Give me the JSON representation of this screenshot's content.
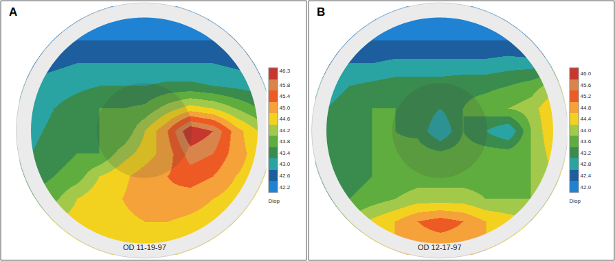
{
  "chart_data": [
    {
      "type": "heatmap",
      "title": "A",
      "subtitle": "OD 11-19-97",
      "tick_labels": false,
      "x": [
        -1,
        -0.8,
        -0.6,
        -0.4,
        -0.2,
        0,
        0.2,
        0.4,
        0.6,
        0.8,
        1
      ],
      "y": [
        1,
        0.8,
        0.6,
        0.4,
        0.2,
        0,
        -0.2,
        -0.4,
        -0.6,
        -0.8,
        -1
      ],
      "z": [
        [
          42.2,
          42.2,
          42.2,
          42.2,
          42.2,
          42.2,
          42.2,
          42.2,
          42.2,
          42.2,
          42.2
        ],
        [
          42.2,
          42.2,
          42.4,
          42.4,
          42.4,
          42.4,
          42.4,
          42.4,
          42.4,
          42.2,
          42.2
        ],
        [
          42.6,
          42.7,
          42.8,
          42.8,
          42.8,
          42.8,
          42.8,
          42.8,
          42.8,
          42.7,
          42.6
        ],
        [
          42.9,
          43.0,
          43.1,
          43.2,
          43.2,
          43.2,
          43.3,
          43.3,
          43.2,
          43.1,
          43.0
        ],
        [
          43.0,
          43.2,
          43.4,
          43.6,
          43.6,
          43.7,
          44.2,
          44.6,
          44.4,
          44.0,
          43.6
        ],
        [
          43.1,
          43.3,
          43.5,
          43.6,
          43.6,
          44.4,
          45.2,
          46.4,
          46.0,
          45.0,
          44.4
        ],
        [
          43.2,
          43.4,
          43.6,
          43.6,
          44.2,
          44.6,
          45.0,
          45.8,
          45.6,
          45.0,
          44.6
        ],
        [
          43.4,
          43.6,
          43.8,
          44.4,
          44.7,
          45.0,
          45.2,
          45.4,
          45.2,
          44.8,
          44.6
        ],
        [
          43.6,
          43.9,
          44.4,
          44.7,
          44.8,
          45.0,
          45.1,
          45.0,
          44.8,
          44.6,
          44.4
        ],
        [
          44.0,
          44.4,
          44.6,
          44.6,
          44.7,
          44.8,
          44.8,
          44.7,
          44.6,
          44.5,
          44.4
        ],
        [
          44.2,
          44.4,
          44.6,
          44.6,
          44.6,
          44.6,
          44.6,
          44.6,
          44.6,
          44.5,
          44.4
        ]
      ],
      "colorbar_range": [
        42.0,
        46.4
      ],
      "colorbar_ticks": [
        42.2,
        42.6,
        {
          "value": 43,
          "label": "43.0"
        },
        43.4,
        43.8,
        44.2,
        44.6,
        {
          "value": 45,
          "label": "45.0"
        },
        45.4,
        45.8,
        46.3
      ],
      "colorbar_title": "Diop",
      "colors": [
        "#1f82d2",
        "#1d5f9e",
        "#2aa3a3",
        "#3a8c4e",
        "#5fad3e",
        "#a3c94a",
        "#f2d21e",
        "#f5a23a",
        "#ee5a24",
        "#d9844a",
        "#c8372d"
      ]
    },
    {
      "type": "heatmap",
      "title": "B",
      "subtitle": "OD 12-17-97",
      "tick_labels": false,
      "x": [
        -1,
        -0.8,
        -0.6,
        -0.4,
        -0.2,
        0,
        0.2,
        0.4,
        0.6,
        0.8,
        1
      ],
      "y": [
        1,
        0.8,
        0.6,
        0.4,
        0.2,
        0,
        -0.2,
        -0.4,
        -0.6,
        -0.8,
        -1
      ],
      "z": [
        [
          42.0,
          42.0,
          42.0,
          42.0,
          42.0,
          42.0,
          42.0,
          42.0,
          42.0,
          42.0,
          42.0
        ],
        [
          42.0,
          42.0,
          42.2,
          42.2,
          42.2,
          42.2,
          42.2,
          42.2,
          42.2,
          42.0,
          42.0
        ],
        [
          42.4,
          42.6,
          42.6,
          42.7,
          42.7,
          42.7,
          42.7,
          42.7,
          42.8,
          42.8,
          42.8
        ],
        [
          42.8,
          43.0,
          43.1,
          43.2,
          43.2,
          43.2,
          43.3,
          43.3,
          43.4,
          43.6,
          44.0
        ],
        [
          43.0,
          43.2,
          43.4,
          43.4,
          43.3,
          43.0,
          43.4,
          43.6,
          43.8,
          44.0,
          44.6
        ],
        [
          43.0,
          43.2,
          43.4,
          43.4,
          43.3,
          42.6,
          43.4,
          43.0,
          42.6,
          43.8,
          44.6
        ],
        [
          43.0,
          43.2,
          43.4,
          43.5,
          43.6,
          43.5,
          43.6,
          43.6,
          43.6,
          43.8,
          44.4
        ],
        [
          43.0,
          43.2,
          43.4,
          43.5,
          43.6,
          43.6,
          43.6,
          43.6,
          43.6,
          43.8,
          44.2
        ],
        [
          43.2,
          43.4,
          43.6,
          43.8,
          44.0,
          44.0,
          44.0,
          43.8,
          43.8,
          43.8,
          44.0
        ],
        [
          43.6,
          43.9,
          44.3,
          44.6,
          45.0,
          45.2,
          45.0,
          44.6,
          44.4,
          44.2,
          44.2
        ],
        [
          44.0,
          44.2,
          44.4,
          44.6,
          44.8,
          44.8,
          44.8,
          44.6,
          44.4,
          44.2,
          44.2
        ]
      ],
      "colorbar_range": [
        41.8,
        46.2
      ],
      "colorbar_ticks": [
        {
          "value": 42,
          "label": "42.0"
        },
        42.4,
        42.8,
        43.2,
        43.6,
        {
          "value": 44,
          "label": "44.0"
        },
        44.4,
        44.8,
        45.2,
        45.6,
        {
          "value": 46,
          "label": "46.0"
        }
      ],
      "colorbar_title": "Diop",
      "colors": [
        "#1f82d2",
        "#1d5f9e",
        "#2aa3a3",
        "#3a8c4e",
        "#5fad3e",
        "#a3c94a",
        "#f2d21e",
        "#f5a23a",
        "#ee5a24",
        "#d9844a",
        "#c8372d"
      ]
    }
  ]
}
